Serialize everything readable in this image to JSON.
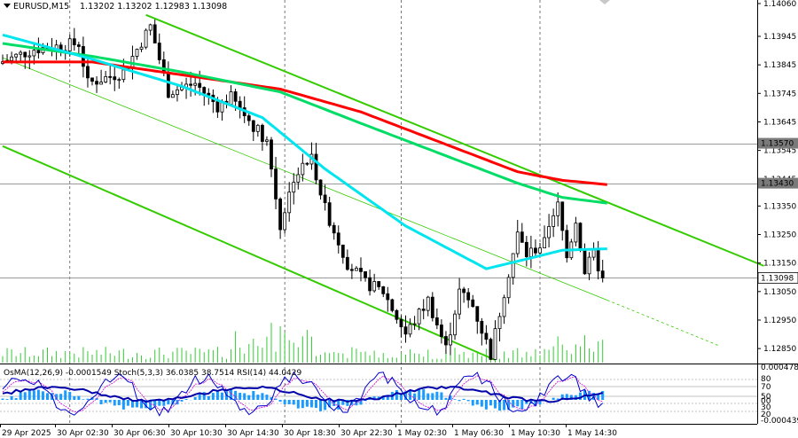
{
  "header": {
    "symbol": "EURUSD,M15",
    "ohlc": "1.13202 1.13202 1.12983 1.13098"
  },
  "chart_data": {
    "type": "candlestick",
    "symbol": "EURUSD",
    "timeframe": "M15",
    "price_axis": {
      "range": [
        1.1281,
        1.1406
      ],
      "ticks": [
        "1.14060",
        "1.13945",
        "1.13845",
        "1.13745",
        "1.13645",
        "1.13545",
        "1.13445",
        "1.13350",
        "1.13250",
        "1.13150",
        "1.13050",
        "1.12950",
        "1.12850"
      ],
      "tick_values": [
        1.1406,
        1.13945,
        1.13845,
        1.13745,
        1.13645,
        1.13545,
        1.13445,
        1.1335,
        1.1325,
        1.1315,
        1.1305,
        1.1295,
        1.1285
      ]
    },
    "price_markers": [
      {
        "label": "1.13570",
        "value": 1.1357,
        "style": "gray"
      },
      {
        "label": "1.13430",
        "value": 1.1343,
        "style": "gray"
      },
      {
        "label": "1.13098",
        "value": 1.13098,
        "style": "current"
      }
    ],
    "time_axis": [
      "29 Apr 2025",
      "30 Apr 02:30",
      "30 Apr 06:30",
      "30 Apr 10:30",
      "30 Apr 14:30",
      "30 Apr 18:30",
      "30 Apr 22:30",
      "1 May 02:30",
      "1 May 06:30",
      "1 May 10:30",
      "1 May 14:30"
    ],
    "candle_count": 135,
    "price_path": [
      [
        0,
        1.1385
      ],
      [
        8,
        1.139
      ],
      [
        18,
        1.1392
      ],
      [
        20,
        1.1378
      ],
      [
        28,
        1.1382
      ],
      [
        34,
        1.1398
      ],
      [
        38,
        1.1375
      ],
      [
        44,
        1.1378
      ],
      [
        49,
        1.137
      ],
      [
        52,
        1.1373
      ],
      [
        56,
        1.1365
      ],
      [
        60,
        1.1358
      ],
      [
        63,
        1.1328
      ],
      [
        66,
        1.1345
      ],
      [
        70,
        1.1352
      ],
      [
        73,
        1.1334
      ],
      [
        78,
        1.1315
      ],
      [
        82,
        1.1308
      ],
      [
        86,
        1.1305
      ],
      [
        91,
        1.129
      ],
      [
        96,
        1.1302
      ],
      [
        100,
        1.1285
      ],
      [
        103,
        1.1305
      ],
      [
        106,
        1.13
      ],
      [
        110,
        1.1283
      ],
      [
        113,
        1.1305
      ],
      [
        116,
        1.1325
      ],
      [
        118,
        1.1318
      ],
      [
        122,
        1.1322
      ],
      [
        125,
        1.1335
      ],
      [
        127,
        1.1317
      ],
      [
        129,
        1.133
      ],
      [
        131,
        1.1312
      ],
      [
        133,
        1.1318
      ],
      [
        135,
        1.13098
      ]
    ],
    "moving_averages": [
      {
        "color": "#ff0000",
        "points": [
          [
            0,
            1.13855
          ],
          [
            20,
            1.13855
          ],
          [
            40,
            1.1381
          ],
          [
            62,
            1.1376
          ],
          [
            80,
            1.1368
          ],
          [
            100,
            1.1356
          ],
          [
            115,
            1.1347
          ],
          [
            125,
            1.1344
          ],
          [
            135,
            1.13425
          ]
        ]
      },
      {
        "color": "#00dd66",
        "points": [
          [
            0,
            1.1392
          ],
          [
            20,
            1.13875
          ],
          [
            40,
            1.1382
          ],
          [
            62,
            1.1375
          ],
          [
            80,
            1.1364
          ],
          [
            100,
            1.1352
          ],
          [
            115,
            1.1343
          ],
          [
            125,
            1.1338
          ],
          [
            135,
            1.1336
          ]
        ]
      },
      {
        "color": "#00e5ee",
        "points": [
          [
            0,
            1.1395
          ],
          [
            20,
            1.13865
          ],
          [
            40,
            1.1377
          ],
          [
            58,
            1.1366
          ],
          [
            72,
            1.1348
          ],
          [
            90,
            1.1328
          ],
          [
            108,
            1.1313
          ],
          [
            116,
            1.1316
          ],
          [
            125,
            1.13195
          ],
          [
            135,
            1.132
          ]
        ]
      }
    ],
    "channel_lines": [
      {
        "color": "#33cc00",
        "p1": [
          32,
          1.1402
        ],
        "p2": [
          170,
          1.1314
        ]
      },
      {
        "color": "#33cc00",
        "p1": [
          0,
          1.1356
        ],
        "p2": [
          110,
          1.1281
        ]
      },
      {
        "color": "#33cc00",
        "p1": [
          0,
          1.1387
        ],
        "p2": [
          135,
          1.1302
        ],
        "thin": true,
        "extend_to": [
          160,
          1.1286
        ]
      }
    ],
    "gray_lines": [
      {
        "value": 1.1357
      },
      {
        "value": 1.1343
      },
      {
        "value": 1.13098
      }
    ],
    "indicator": {
      "label": "OsMA(12,26,9) -0.0001549  Stoch(5,3,3) 36.0385 38.7514  RSI(14) 44.0429",
      "right_labels": [
        "0.000478",
        "80",
        "70",
        "50",
        "00",
        "30",
        "20",
        "-0.000439"
      ]
    },
    "vlines_time": [
      15,
      63,
      89,
      120
    ]
  },
  "colors": {
    "ma_slow": "#ff0000",
    "ma_mid": "#00dd66",
    "ma_fast": "#00e5ee",
    "channel": "#33cc00",
    "volume": "#33cc33",
    "osma": "#1a9bff",
    "stoch_main": "#0000cc",
    "stoch_signal": "#cc00cc"
  }
}
